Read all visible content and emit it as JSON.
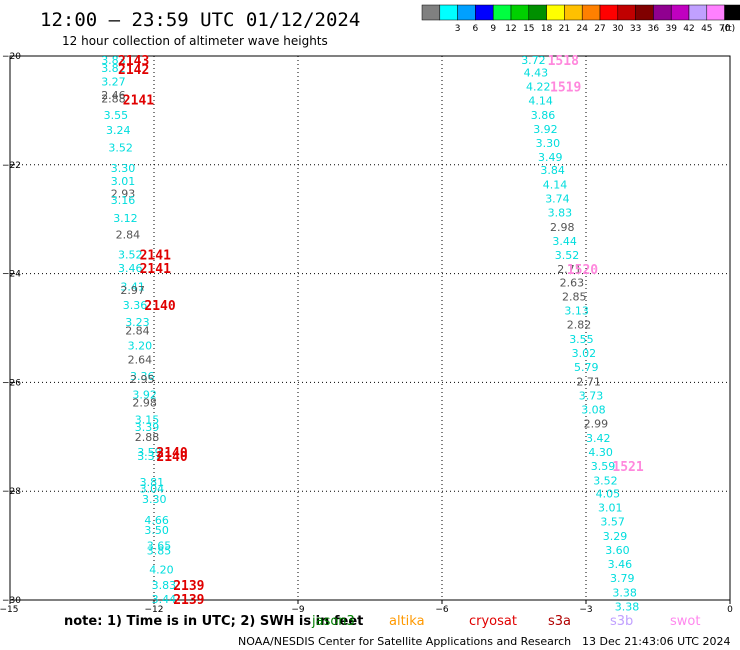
{
  "header": {
    "title": "12:00 — 23:59 UTC 01/12/2024",
    "subtitle": "12 hour collection of altimeter wave heights"
  },
  "legend": {
    "unit": "(ft)",
    "bins": [
      {
        "label": "",
        "color": "#808080"
      },
      {
        "label": "3",
        "color": "#00ffff"
      },
      {
        "label": "6",
        "color": "#00a0ff"
      },
      {
        "label": "9",
        "color": "#0000ff"
      },
      {
        "label": "12",
        "color": "#00ff40"
      },
      {
        "label": "15",
        "color": "#00d000"
      },
      {
        "label": "18",
        "color": "#009000"
      },
      {
        "label": "21",
        "color": "#ffff00"
      },
      {
        "label": "24",
        "color": "#ffc000"
      },
      {
        "label": "27",
        "color": "#ff8000"
      },
      {
        "label": "30",
        "color": "#ff0000"
      },
      {
        "label": "33",
        "color": "#c00000"
      },
      {
        "label": "36",
        "color": "#800000"
      },
      {
        "label": "39",
        "color": "#900090"
      },
      {
        "label": "42",
        "color": "#c000c0"
      },
      {
        "label": "45",
        "color": "#c0a0ff"
      },
      {
        "label": "70",
        "color": "#ff80ff"
      },
      {
        "label": "",
        "color": "#000000"
      }
    ]
  },
  "footer": {
    "note": "note:  1) Time is in UTC; 2) SWH is in feet",
    "satellites": [
      {
        "name": "jason3",
        "color": "#008000"
      },
      {
        "name": "altika",
        "color": "#ff9900"
      },
      {
        "name": "cryosat",
        "color": "#e00000"
      },
      {
        "name": "s3a",
        "color": "#b00000"
      },
      {
        "name": "s3b",
        "color": "#c0a0ff"
      },
      {
        "name": "swot",
        "color": "#ff88ee"
      }
    ],
    "credit": "NOAA/NESDIS Center for Satellite Applications and Research",
    "timestamp": "13 Dec 21:43:06 UTC 2024"
  },
  "chart_data": {
    "type": "scatter",
    "xlim": [
      -15,
      0
    ],
    "ylim": [
      -30,
      -20
    ],
    "xticks": [
      -15,
      -12,
      -9,
      -6,
      -3,
      0
    ],
    "yticks": [
      -20,
      -22,
      -24,
      -26,
      -28,
      -30
    ],
    "xtick_labels": [
      "−15",
      "−12",
      "−9",
      "−6",
      "−3",
      "0"
    ],
    "ytick_labels": [
      "−20",
      "−22",
      "−24",
      "−26",
      "−28",
      "−30"
    ],
    "grid": true,
    "points": [
      {
        "x": -13.1,
        "y": -20.07,
        "label": "3.83",
        "color": "#00dddd"
      },
      {
        "x": -13.1,
        "y": -20.22,
        "label": "3.82",
        "color": "#00dddd"
      },
      {
        "x": -13.1,
        "y": -20.47,
        "label": "3.27",
        "color": "#00dddd"
      },
      {
        "x": -13.1,
        "y": -20.72,
        "label": "2.46",
        "color": "#555555"
      },
      {
        "x": -13.1,
        "y": -20.78,
        "label": "2.88",
        "color": "#555555"
      },
      {
        "x": -13.05,
        "y": -21.08,
        "label": "3.55",
        "color": "#00dddd"
      },
      {
        "x": -13.0,
        "y": -21.36,
        "label": "3.24",
        "color": "#00dddd"
      },
      {
        "x": -12.95,
        "y": -21.68,
        "label": "3.52",
        "color": "#00dddd"
      },
      {
        "x": -12.9,
        "y": -22.06,
        "label": "3.30",
        "color": "#00dddd"
      },
      {
        "x": -12.9,
        "y": -22.3,
        "label": "3.01",
        "color": "#00dddd"
      },
      {
        "x": -12.9,
        "y": -22.53,
        "label": "2.93",
        "color": "#555555"
      },
      {
        "x": -12.9,
        "y": -22.65,
        "label": "3.16",
        "color": "#00dddd"
      },
      {
        "x": -12.85,
        "y": -22.98,
        "label": "3.12",
        "color": "#00dddd"
      },
      {
        "x": -12.8,
        "y": -23.28,
        "label": "2.84",
        "color": "#555555"
      },
      {
        "x": -12.75,
        "y": -23.65,
        "label": "3.52",
        "color": "#00dddd"
      },
      {
        "x": -12.75,
        "y": -23.9,
        "label": "3.46",
        "color": "#00dddd"
      },
      {
        "x": -12.7,
        "y": -24.24,
        "label": "3.41",
        "color": "#00dddd"
      },
      {
        "x": -12.7,
        "y": -24.3,
        "label": "2.97",
        "color": "#555555"
      },
      {
        "x": -12.65,
        "y": -24.58,
        "label": "3.36",
        "color": "#00dddd"
      },
      {
        "x": -12.6,
        "y": -24.89,
        "label": "3.23",
        "color": "#00dddd"
      },
      {
        "x": -12.6,
        "y": -25.05,
        "label": "2.84",
        "color": "#555555"
      },
      {
        "x": -12.55,
        "y": -25.32,
        "label": "3.20",
        "color": "#00dddd"
      },
      {
        "x": -12.55,
        "y": -25.58,
        "label": "2.64",
        "color": "#555555"
      },
      {
        "x": -12.5,
        "y": -25.88,
        "label": "3.36",
        "color": "#00dddd"
      },
      {
        "x": -12.5,
        "y": -25.94,
        "label": "2.95",
        "color": "#555555"
      },
      {
        "x": -12.45,
        "y": -26.22,
        "label": "3.92",
        "color": "#00dddd"
      },
      {
        "x": -12.45,
        "y": -26.37,
        "label": "2.98",
        "color": "#555555"
      },
      {
        "x": -12.4,
        "y": -26.68,
        "label": "3.15",
        "color": "#00dddd"
      },
      {
        "x": -12.4,
        "y": -26.82,
        "label": "3.39",
        "color": "#00dddd"
      },
      {
        "x": -12.4,
        "y": -27.0,
        "label": "2.88",
        "color": "#555555"
      },
      {
        "x": -12.35,
        "y": -27.28,
        "label": "3.59",
        "color": "#00dddd"
      },
      {
        "x": -12.35,
        "y": -27.35,
        "label": "3.37",
        "color": "#00dddd"
      },
      {
        "x": -12.3,
        "y": -27.83,
        "label": "3.81",
        "color": "#00dddd"
      },
      {
        "x": -12.3,
        "y": -27.95,
        "label": "3.04",
        "color": "#00dddd"
      },
      {
        "x": -12.25,
        "y": -28.14,
        "label": "3.30",
        "color": "#00dddd"
      },
      {
        "x": -12.2,
        "y": -28.53,
        "label": "4.66",
        "color": "#00dddd"
      },
      {
        "x": -12.2,
        "y": -28.71,
        "label": "3.50",
        "color": "#00dddd"
      },
      {
        "x": -12.15,
        "y": -29.0,
        "label": "3.65",
        "color": "#00dddd"
      },
      {
        "x": -12.15,
        "y": -29.09,
        "label": "3.85",
        "color": "#00dddd"
      },
      {
        "x": -12.1,
        "y": -29.44,
        "label": "4.20",
        "color": "#00dddd"
      },
      {
        "x": -12.05,
        "y": -29.72,
        "label": "3.83",
        "color": "#00dddd"
      },
      {
        "x": -12.05,
        "y": -29.98,
        "label": "3.44",
        "color": "#00dddd"
      },
      {
        "x": -4.35,
        "y": -20.07,
        "label": "3.72",
        "color": "#00dddd"
      },
      {
        "x": -4.3,
        "y": -20.3,
        "label": "4.43",
        "color": "#00dddd"
      },
      {
        "x": -4.25,
        "y": -20.56,
        "label": "4.22",
        "color": "#00dddd"
      },
      {
        "x": -4.2,
        "y": -20.82,
        "label": "4.14",
        "color": "#00dddd"
      },
      {
        "x": -4.15,
        "y": -21.08,
        "label": "3.86",
        "color": "#00dddd"
      },
      {
        "x": -4.1,
        "y": -21.34,
        "label": "3.92",
        "color": "#00dddd"
      },
      {
        "x": -4.05,
        "y": -21.6,
        "label": "3.30",
        "color": "#00dddd"
      },
      {
        "x": -4.0,
        "y": -21.86,
        "label": "3.49",
        "color": "#00dddd"
      },
      {
        "x": -3.95,
        "y": -22.1,
        "label": "3.84",
        "color": "#00dddd"
      },
      {
        "x": -3.9,
        "y": -22.36,
        "label": "4.14",
        "color": "#00dddd"
      },
      {
        "x": -3.85,
        "y": -22.62,
        "label": "3.74",
        "color": "#00dddd"
      },
      {
        "x": -3.8,
        "y": -22.88,
        "label": "3.83",
        "color": "#00dddd"
      },
      {
        "x": -3.75,
        "y": -23.14,
        "label": "2.98",
        "color": "#555555"
      },
      {
        "x": -3.7,
        "y": -23.4,
        "label": "3.44",
        "color": "#00dddd"
      },
      {
        "x": -3.65,
        "y": -23.66,
        "label": "3.52",
        "color": "#00dddd"
      },
      {
        "x": -3.6,
        "y": -23.92,
        "label": "2.71",
        "color": "#555555"
      },
      {
        "x": -3.55,
        "y": -24.16,
        "label": "2.63",
        "color": "#555555"
      },
      {
        "x": -3.5,
        "y": -24.42,
        "label": "2.85",
        "color": "#555555"
      },
      {
        "x": -3.45,
        "y": -24.68,
        "label": "3.13",
        "color": "#00dddd"
      },
      {
        "x": -3.4,
        "y": -24.94,
        "label": "2.82",
        "color": "#555555"
      },
      {
        "x": -3.35,
        "y": -25.2,
        "label": "3.55",
        "color": "#00dddd"
      },
      {
        "x": -3.3,
        "y": -25.46,
        "label": "3.02",
        "color": "#00dddd"
      },
      {
        "x": -3.25,
        "y": -25.72,
        "label": "5.79",
        "color": "#00dddd"
      },
      {
        "x": -3.2,
        "y": -25.98,
        "label": "2.71",
        "color": "#555555"
      },
      {
        "x": -3.15,
        "y": -26.24,
        "label": "3.73",
        "color": "#00dddd"
      },
      {
        "x": -3.1,
        "y": -26.5,
        "label": "3.08",
        "color": "#00dddd"
      },
      {
        "x": -3.05,
        "y": -26.76,
        "label": "2.99",
        "color": "#555555"
      },
      {
        "x": -3.0,
        "y": -27.02,
        "label": "3.42",
        "color": "#00dddd"
      },
      {
        "x": -2.95,
        "y": -27.28,
        "label": "4.30",
        "color": "#00dddd"
      },
      {
        "x": -2.9,
        "y": -27.54,
        "label": "3.59",
        "color": "#00dddd"
      },
      {
        "x": -2.85,
        "y": -27.8,
        "label": "3.52",
        "color": "#00dddd"
      },
      {
        "x": -2.8,
        "y": -28.04,
        "label": "4.05",
        "color": "#00dddd"
      },
      {
        "x": -2.75,
        "y": -28.3,
        "label": "3.01",
        "color": "#00dddd"
      },
      {
        "x": -2.7,
        "y": -28.56,
        "label": "3.57",
        "color": "#00dddd"
      },
      {
        "x": -2.65,
        "y": -28.82,
        "label": "3.29",
        "color": "#00dddd"
      },
      {
        "x": -2.6,
        "y": -29.08,
        "label": "3.60",
        "color": "#00dddd"
      },
      {
        "x": -2.55,
        "y": -29.34,
        "label": "3.46",
        "color": "#00dddd"
      },
      {
        "x": -2.5,
        "y": -29.6,
        "label": "3.79",
        "color": "#00dddd"
      },
      {
        "x": -2.45,
        "y": -29.86,
        "label": "3.38",
        "color": "#00dddd"
      },
      {
        "x": -2.4,
        "y": -30.12,
        "label": "3.38",
        "color": "#00dddd"
      }
    ],
    "revolutions": [
      {
        "x": -12.75,
        "y": -20.07,
        "label": "2143",
        "color": "#e00000"
      },
      {
        "x": -12.75,
        "y": -20.24,
        "label": "2142",
        "color": "#e00000"
      },
      {
        "x": -12.65,
        "y": -20.8,
        "label": "2141",
        "color": "#e00000"
      },
      {
        "x": -12.3,
        "y": -23.65,
        "label": "2141",
        "color": "#e00000"
      },
      {
        "x": -12.3,
        "y": -23.9,
        "label": "2141",
        "color": "#e00000"
      },
      {
        "x": -12.2,
        "y": -24.58,
        "label": "2140",
        "color": "#e00000"
      },
      {
        "x": -11.95,
        "y": -27.28,
        "label": "2140",
        "color": "#e00000"
      },
      {
        "x": -11.95,
        "y": -27.35,
        "label": "2140",
        "color": "#e00000"
      },
      {
        "x": -11.6,
        "y": -29.72,
        "label": "2139",
        "color": "#e00000"
      },
      {
        "x": -11.6,
        "y": -29.98,
        "label": "2139",
        "color": "#e00000"
      },
      {
        "x": -3.8,
        "y": -20.07,
        "label": "1518",
        "color": "#ff88dd"
      },
      {
        "x": -3.75,
        "y": -20.56,
        "label": "1519",
        "color": "#ff88dd"
      },
      {
        "x": -3.4,
        "y": -23.92,
        "label": "1520",
        "color": "#ff88dd"
      },
      {
        "x": -2.45,
        "y": -27.54,
        "label": "1521",
        "color": "#ff88dd"
      }
    ]
  }
}
